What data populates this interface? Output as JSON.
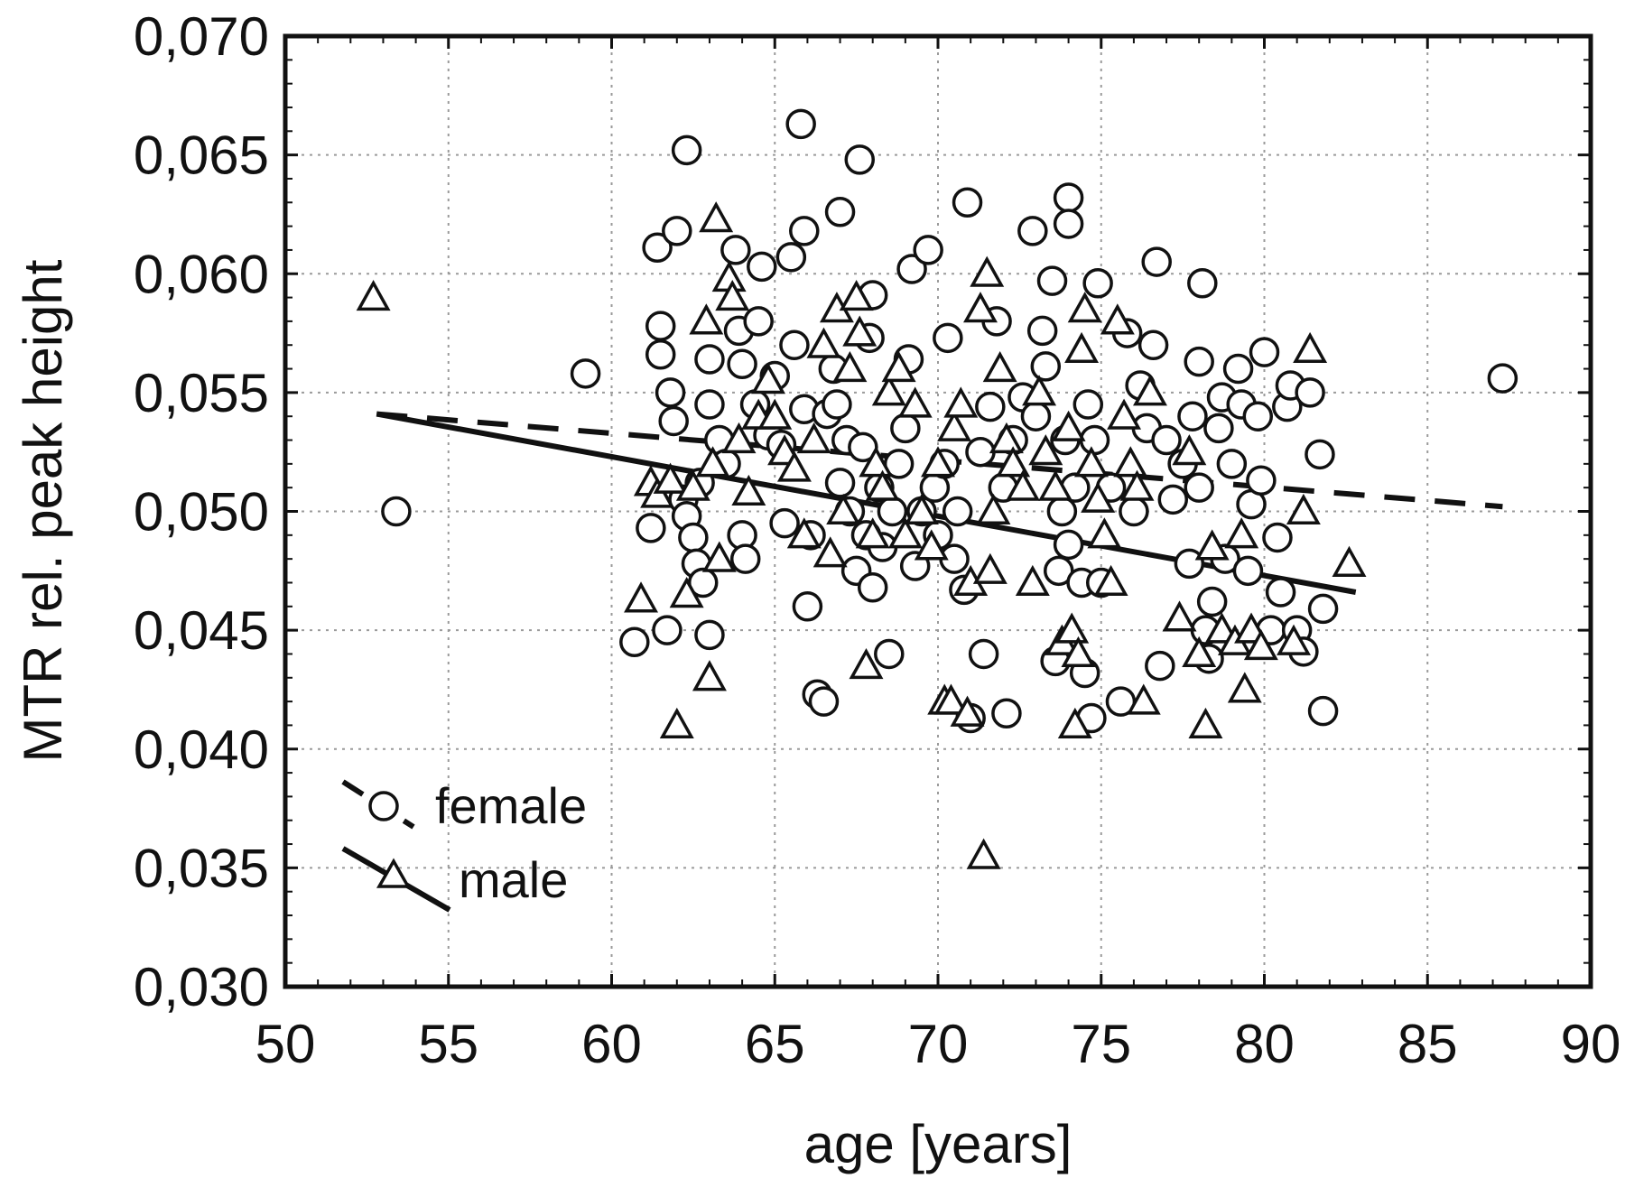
{
  "chart_data": {
    "type": "scatter",
    "title": "",
    "xlabel": "age [years]",
    "ylabel": "MTR rel. peak height",
    "xlim": [
      50,
      90
    ],
    "ylim": [
      0.03,
      0.07
    ],
    "xticks": [
      "50",
      "55",
      "60",
      "65",
      "70",
      "75",
      "80",
      "85",
      "90"
    ],
    "yticks": [
      "0,030",
      "0,035",
      "0,040",
      "0,045",
      "0,050",
      "0,055",
      "0,060",
      "0,065",
      "0,070"
    ],
    "grid": true,
    "legend_position": "bottom-left",
    "series": [
      {
        "name": "female",
        "marker": "circle",
        "fit_line": "dashed",
        "fit": {
          "x": [
            52.8,
            87.3
          ],
          "y": [
            0.0541,
            0.0502
          ]
        },
        "points": [
          [
            53.4,
            0.05
          ],
          [
            59.2,
            0.0558
          ],
          [
            60.7,
            0.0445
          ],
          [
            61.2,
            0.0493
          ],
          [
            61.4,
            0.0611
          ],
          [
            61.5,
            0.0578
          ],
          [
            61.5,
            0.0566
          ],
          [
            61.7,
            0.045
          ],
          [
            61.8,
            0.055
          ],
          [
            61.9,
            0.0538
          ],
          [
            62.0,
            0.0618
          ],
          [
            62.2,
            0.0505
          ],
          [
            62.3,
            0.0652
          ],
          [
            62.3,
            0.0498
          ],
          [
            62.5,
            0.0489
          ],
          [
            62.6,
            0.0478
          ],
          [
            62.7,
            0.0512
          ],
          [
            62.8,
            0.047
          ],
          [
            63.0,
            0.0564
          ],
          [
            63.0,
            0.0545
          ],
          [
            63.0,
            0.0448
          ],
          [
            63.3,
            0.053
          ],
          [
            63.5,
            0.052
          ],
          [
            63.8,
            0.061
          ],
          [
            63.9,
            0.0576
          ],
          [
            64.0,
            0.0562
          ],
          [
            64.0,
            0.049
          ],
          [
            64.1,
            0.048
          ],
          [
            64.4,
            0.0545
          ],
          [
            64.5,
            0.058
          ],
          [
            64.6,
            0.0603
          ],
          [
            64.8,
            0.0532
          ],
          [
            65.0,
            0.0557
          ],
          [
            65.2,
            0.0528
          ],
          [
            65.3,
            0.0495
          ],
          [
            65.5,
            0.0607
          ],
          [
            65.6,
            0.057
          ],
          [
            65.8,
            0.0663
          ],
          [
            65.9,
            0.0543
          ],
          [
            65.9,
            0.0618
          ],
          [
            66.0,
            0.046
          ],
          [
            66.1,
            0.049
          ],
          [
            66.3,
            0.0423
          ],
          [
            66.5,
            0.042
          ],
          [
            66.6,
            0.0541
          ],
          [
            66.8,
            0.056
          ],
          [
            66.9,
            0.0545
          ],
          [
            67.0,
            0.0626
          ],
          [
            67.0,
            0.0512
          ],
          [
            67.2,
            0.053
          ],
          [
            67.3,
            0.05
          ],
          [
            67.5,
            0.0475
          ],
          [
            67.6,
            0.0648
          ],
          [
            67.7,
            0.0527
          ],
          [
            67.8,
            0.049
          ],
          [
            67.9,
            0.0573
          ],
          [
            68.0,
            0.0591
          ],
          [
            68.0,
            0.0468
          ],
          [
            68.2,
            0.051
          ],
          [
            68.3,
            0.0485
          ],
          [
            68.5,
            0.044
          ],
          [
            68.6,
            0.05
          ],
          [
            68.8,
            0.052
          ],
          [
            69.0,
            0.0535
          ],
          [
            69.1,
            0.0564
          ],
          [
            69.2,
            0.0602
          ],
          [
            69.3,
            0.0477
          ],
          [
            69.5,
            0.05
          ],
          [
            69.7,
            0.061
          ],
          [
            69.9,
            0.051
          ],
          [
            70.0,
            0.049
          ],
          [
            70.2,
            0.052
          ],
          [
            70.3,
            0.0573
          ],
          [
            70.5,
            0.048
          ],
          [
            70.6,
            0.05
          ],
          [
            70.8,
            0.0467
          ],
          [
            70.9,
            0.063
          ],
          [
            71.0,
            0.0413
          ],
          [
            71.3,
            0.0525
          ],
          [
            71.4,
            0.044
          ],
          [
            71.6,
            0.0544
          ],
          [
            71.8,
            0.058
          ],
          [
            72.0,
            0.051
          ],
          [
            72.1,
            0.0415
          ],
          [
            72.3,
            0.053
          ],
          [
            72.6,
            0.0548
          ],
          [
            72.9,
            0.0618
          ],
          [
            73.0,
            0.054
          ],
          [
            73.2,
            0.0576
          ],
          [
            73.3,
            0.0561
          ],
          [
            73.5,
            0.0597
          ],
          [
            73.6,
            0.0437
          ],
          [
            73.7,
            0.0475
          ],
          [
            73.8,
            0.05
          ],
          [
            73.9,
            0.053
          ],
          [
            74.0,
            0.0486
          ],
          [
            74.0,
            0.0632
          ],
          [
            74.0,
            0.0621
          ],
          [
            74.2,
            0.051
          ],
          [
            74.4,
            0.047
          ],
          [
            74.5,
            0.0432
          ],
          [
            74.6,
            0.0545
          ],
          [
            74.7,
            0.0413
          ],
          [
            74.8,
            0.053
          ],
          [
            74.9,
            0.0596
          ],
          [
            75.0,
            0.047
          ],
          [
            75.3,
            0.051
          ],
          [
            75.6,
            0.042
          ],
          [
            75.8,
            0.0575
          ],
          [
            76.0,
            0.05
          ],
          [
            76.2,
            0.0553
          ],
          [
            76.4,
            0.0535
          ],
          [
            76.6,
            0.057
          ],
          [
            76.7,
            0.0605
          ],
          [
            76.8,
            0.0435
          ],
          [
            77.0,
            0.053
          ],
          [
            77.2,
            0.0505
          ],
          [
            77.5,
            0.052
          ],
          [
            77.7,
            0.0478
          ],
          [
            77.8,
            0.054
          ],
          [
            78.0,
            0.0563
          ],
          [
            78.0,
            0.051
          ],
          [
            78.1,
            0.0596
          ],
          [
            78.2,
            0.045
          ],
          [
            78.3,
            0.0438
          ],
          [
            78.4,
            0.0462
          ],
          [
            78.6,
            0.0535
          ],
          [
            78.7,
            0.0548
          ],
          [
            78.8,
            0.048
          ],
          [
            79.0,
            0.052
          ],
          [
            79.2,
            0.056
          ],
          [
            79.3,
            0.0545
          ],
          [
            79.5,
            0.0475
          ],
          [
            79.6,
            0.0503
          ],
          [
            79.8,
            0.054
          ],
          [
            79.9,
            0.0513
          ],
          [
            80.0,
            0.0567
          ],
          [
            80.2,
            0.045
          ],
          [
            80.4,
            0.0489
          ],
          [
            80.5,
            0.0466
          ],
          [
            80.7,
            0.0544
          ],
          [
            80.8,
            0.0553
          ],
          [
            81.0,
            0.045
          ],
          [
            81.2,
            0.0441
          ],
          [
            81.4,
            0.055
          ],
          [
            81.7,
            0.0524
          ],
          [
            81.8,
            0.0416
          ],
          [
            81.8,
            0.0459
          ],
          [
            87.3,
            0.0556
          ]
        ]
      },
      {
        "name": "male",
        "marker": "triangle",
        "fit_line": "solid",
        "fit": {
          "x": [
            52.8,
            82.8
          ],
          "y": [
            0.0541,
            0.0466
          ]
        },
        "points": [
          [
            52.7,
            0.059
          ],
          [
            60.9,
            0.0463
          ],
          [
            61.2,
            0.0512
          ],
          [
            61.4,
            0.0507
          ],
          [
            61.8,
            0.0513
          ],
          [
            62.0,
            0.041
          ],
          [
            62.3,
            0.0465
          ],
          [
            62.5,
            0.051
          ],
          [
            62.9,
            0.058
          ],
          [
            63.0,
            0.043
          ],
          [
            63.1,
            0.052
          ],
          [
            63.2,
            0.0623
          ],
          [
            63.3,
            0.048
          ],
          [
            63.6,
            0.0598
          ],
          [
            63.7,
            0.059
          ],
          [
            63.9,
            0.053
          ],
          [
            64.2,
            0.0508
          ],
          [
            64.5,
            0.054
          ],
          [
            64.8,
            0.0555
          ],
          [
            65.0,
            0.054
          ],
          [
            65.3,
            0.0525
          ],
          [
            65.6,
            0.0518
          ],
          [
            65.9,
            0.049
          ],
          [
            66.2,
            0.053
          ],
          [
            66.5,
            0.057
          ],
          [
            66.7,
            0.0482
          ],
          [
            66.9,
            0.0585
          ],
          [
            67.1,
            0.05
          ],
          [
            67.3,
            0.056
          ],
          [
            67.5,
            0.059
          ],
          [
            67.6,
            0.0575
          ],
          [
            67.8,
            0.0435
          ],
          [
            68.0,
            0.049
          ],
          [
            68.1,
            0.052
          ],
          [
            68.3,
            0.051
          ],
          [
            68.5,
            0.055
          ],
          [
            68.8,
            0.056
          ],
          [
            69.0,
            0.049
          ],
          [
            69.3,
            0.0545
          ],
          [
            69.5,
            0.05
          ],
          [
            69.8,
            0.0485
          ],
          [
            70.0,
            0.052
          ],
          [
            70.2,
            0.042
          ],
          [
            70.4,
            0.042
          ],
          [
            70.5,
            0.0535
          ],
          [
            70.7,
            0.0545
          ],
          [
            70.9,
            0.0415
          ],
          [
            71.0,
            0.047
          ],
          [
            71.3,
            0.0585
          ],
          [
            71.4,
            0.0355
          ],
          [
            71.5,
            0.06
          ],
          [
            71.6,
            0.0475
          ],
          [
            71.7,
            0.05
          ],
          [
            71.9,
            0.056
          ],
          [
            72.1,
            0.053
          ],
          [
            72.3,
            0.052
          ],
          [
            72.6,
            0.051
          ],
          [
            72.9,
            0.047
          ],
          [
            73.1,
            0.055
          ],
          [
            73.3,
            0.0525
          ],
          [
            73.6,
            0.051
          ],
          [
            73.8,
            0.0445
          ],
          [
            74.0,
            0.0535
          ],
          [
            74.1,
            0.045
          ],
          [
            74.2,
            0.041
          ],
          [
            74.3,
            0.044
          ],
          [
            74.4,
            0.0568
          ],
          [
            74.5,
            0.0585
          ],
          [
            74.7,
            0.052
          ],
          [
            74.9,
            0.0505
          ],
          [
            75.1,
            0.049
          ],
          [
            75.3,
            0.047
          ],
          [
            75.5,
            0.058
          ],
          [
            75.7,
            0.054
          ],
          [
            75.9,
            0.052
          ],
          [
            76.1,
            0.051
          ],
          [
            76.3,
            0.042
          ],
          [
            76.5,
            0.055
          ],
          [
            77.4,
            0.0455
          ],
          [
            77.7,
            0.0525
          ],
          [
            78.0,
            0.044
          ],
          [
            78.2,
            0.041
          ],
          [
            78.4,
            0.0485
          ],
          [
            78.7,
            0.045
          ],
          [
            79.1,
            0.0445
          ],
          [
            79.3,
            0.049
          ],
          [
            79.4,
            0.0425
          ],
          [
            79.6,
            0.045
          ],
          [
            79.9,
            0.0443
          ],
          [
            80.9,
            0.0445
          ],
          [
            81.2,
            0.05
          ],
          [
            81.4,
            0.0568
          ],
          [
            82.6,
            0.0478
          ]
        ]
      }
    ]
  }
}
